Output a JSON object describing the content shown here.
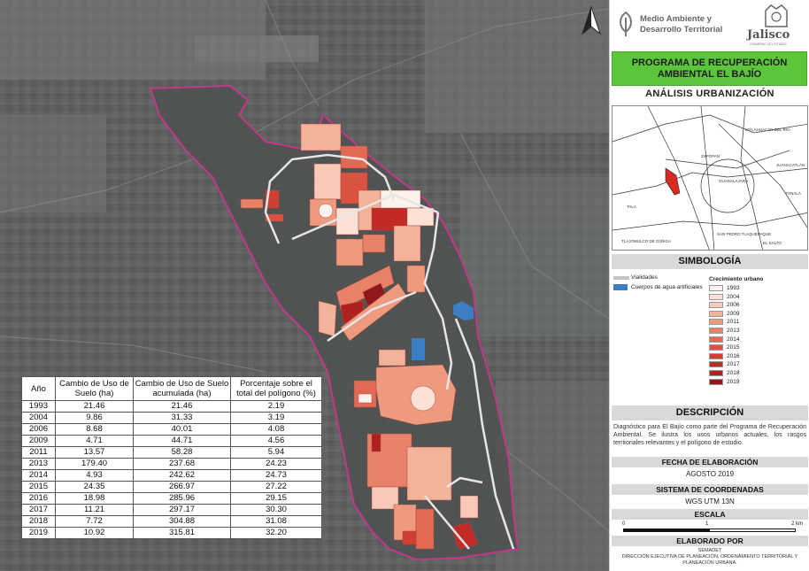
{
  "header": {
    "org_name": "Medio Ambiente y Desarrollo Territorial",
    "state_name": "Jalisco",
    "state_subtitle": "GOBIERNO DEL ESTADO"
  },
  "title": "PROGRAMA DE RECUPERACIÓN AMBIENTAL EL BAJÍO",
  "subtitle": "ANÁLISIS URBANIZACIÓN",
  "minimap_labels": [
    "IXTLAHUACÁN DEL RÍO",
    "ZAPOPAN",
    "TONALÁ",
    "GUADALAJARA",
    "TALA",
    "TLAJOMULCO DE ZÚÑIGA",
    "SAN PEDRO TLAQUEPAQUE",
    "EL SALTO",
    "JUANACATLÁN"
  ],
  "legend": {
    "title": "SIMBOLOGÍA",
    "items": [
      {
        "label": "Vialidades",
        "kind": "road"
      },
      {
        "label": "Cuerpos de agua artificiales",
        "kind": "water",
        "color": "#3d7dc4"
      }
    ],
    "growth_title": "Crecimiento urbano",
    "growth": [
      {
        "label": "1993",
        "color": "#fdf1ec"
      },
      {
        "label": "2004",
        "color": "#fbe1d6"
      },
      {
        "label": "2006",
        "color": "#f7c9b6"
      },
      {
        "label": "2009",
        "color": "#f3b29a"
      },
      {
        "label": "2011",
        "color": "#ee9a7e"
      },
      {
        "label": "2013",
        "color": "#e88168"
      },
      {
        "label": "2014",
        "color": "#e26a54"
      },
      {
        "label": "2015",
        "color": "#d95242"
      },
      {
        "label": "2016",
        "color": "#cf3d33"
      },
      {
        "label": "2017",
        "color": "#c22a26"
      },
      {
        "label": "2018",
        "color": "#b0201f"
      },
      {
        "label": "2019",
        "color": "#901818"
      }
    ]
  },
  "description": {
    "title": "DESCRIPCIÓN",
    "text": "Diagnóstico para El Bajío como parte del Programa de Recuperación Ambiental. Se ilustra los usos urbanos actuales, los rasgos territoriales relevantes y el polígono de estudio."
  },
  "elaboration_date": {
    "title": "FECHA DE ELABORACIÓN",
    "value": "AGOSTO 2019"
  },
  "coordinates": {
    "title": "SISTEMA DE COORDENADAS",
    "value": "WGS UTM 13N"
  },
  "scale": {
    "title": "ESCALA",
    "ticks": [
      "0",
      "1",
      "2 km"
    ]
  },
  "credits": {
    "title": "ELABORADO POR",
    "lines": [
      "SEMADET",
      "DIRECCIÓN EJECUTIVA DE PLANEACIÓN, ORDENAMIENTO TERRITORIAL Y PLANEACIÓN URBANA."
    ]
  },
  "colors": {
    "boundary": "#c2378a",
    "title_green": "#5bc63a",
    "water": "#3d7dc4"
  },
  "table": {
    "headers": [
      "Año",
      "Cambio de Uso de Suelo (ha)",
      "Cambio de Uso de Suelo acumulada (ha)",
      "Porcentaje sobre el total del polígono (%)"
    ],
    "rows": [
      [
        "1993",
        "21.46",
        "21.46",
        "2.19"
      ],
      [
        "2004",
        "9.86",
        "31.33",
        "3.19"
      ],
      [
        "2006",
        "8.68",
        "40.01",
        "4.08"
      ],
      [
        "2009",
        "4.71",
        "44.71",
        "4.56"
      ],
      [
        "2011",
        "13.57",
        "58.28",
        "5.94"
      ],
      [
        "2013",
        "179.40",
        "237.68",
        "24.23"
      ],
      [
        "2014",
        "4.93",
        "242.62",
        "24.73"
      ],
      [
        "2015",
        "24.35",
        "266.97",
        "27.22"
      ],
      [
        "2016",
        "18.98",
        "285.96",
        "29.15"
      ],
      [
        "2017",
        "11.21",
        "297.17",
        "30.30"
      ],
      [
        "2018",
        "7.72",
        "304.88",
        "31.08"
      ],
      [
        "2019",
        "10.92",
        "315.81",
        "32.20"
      ]
    ]
  }
}
